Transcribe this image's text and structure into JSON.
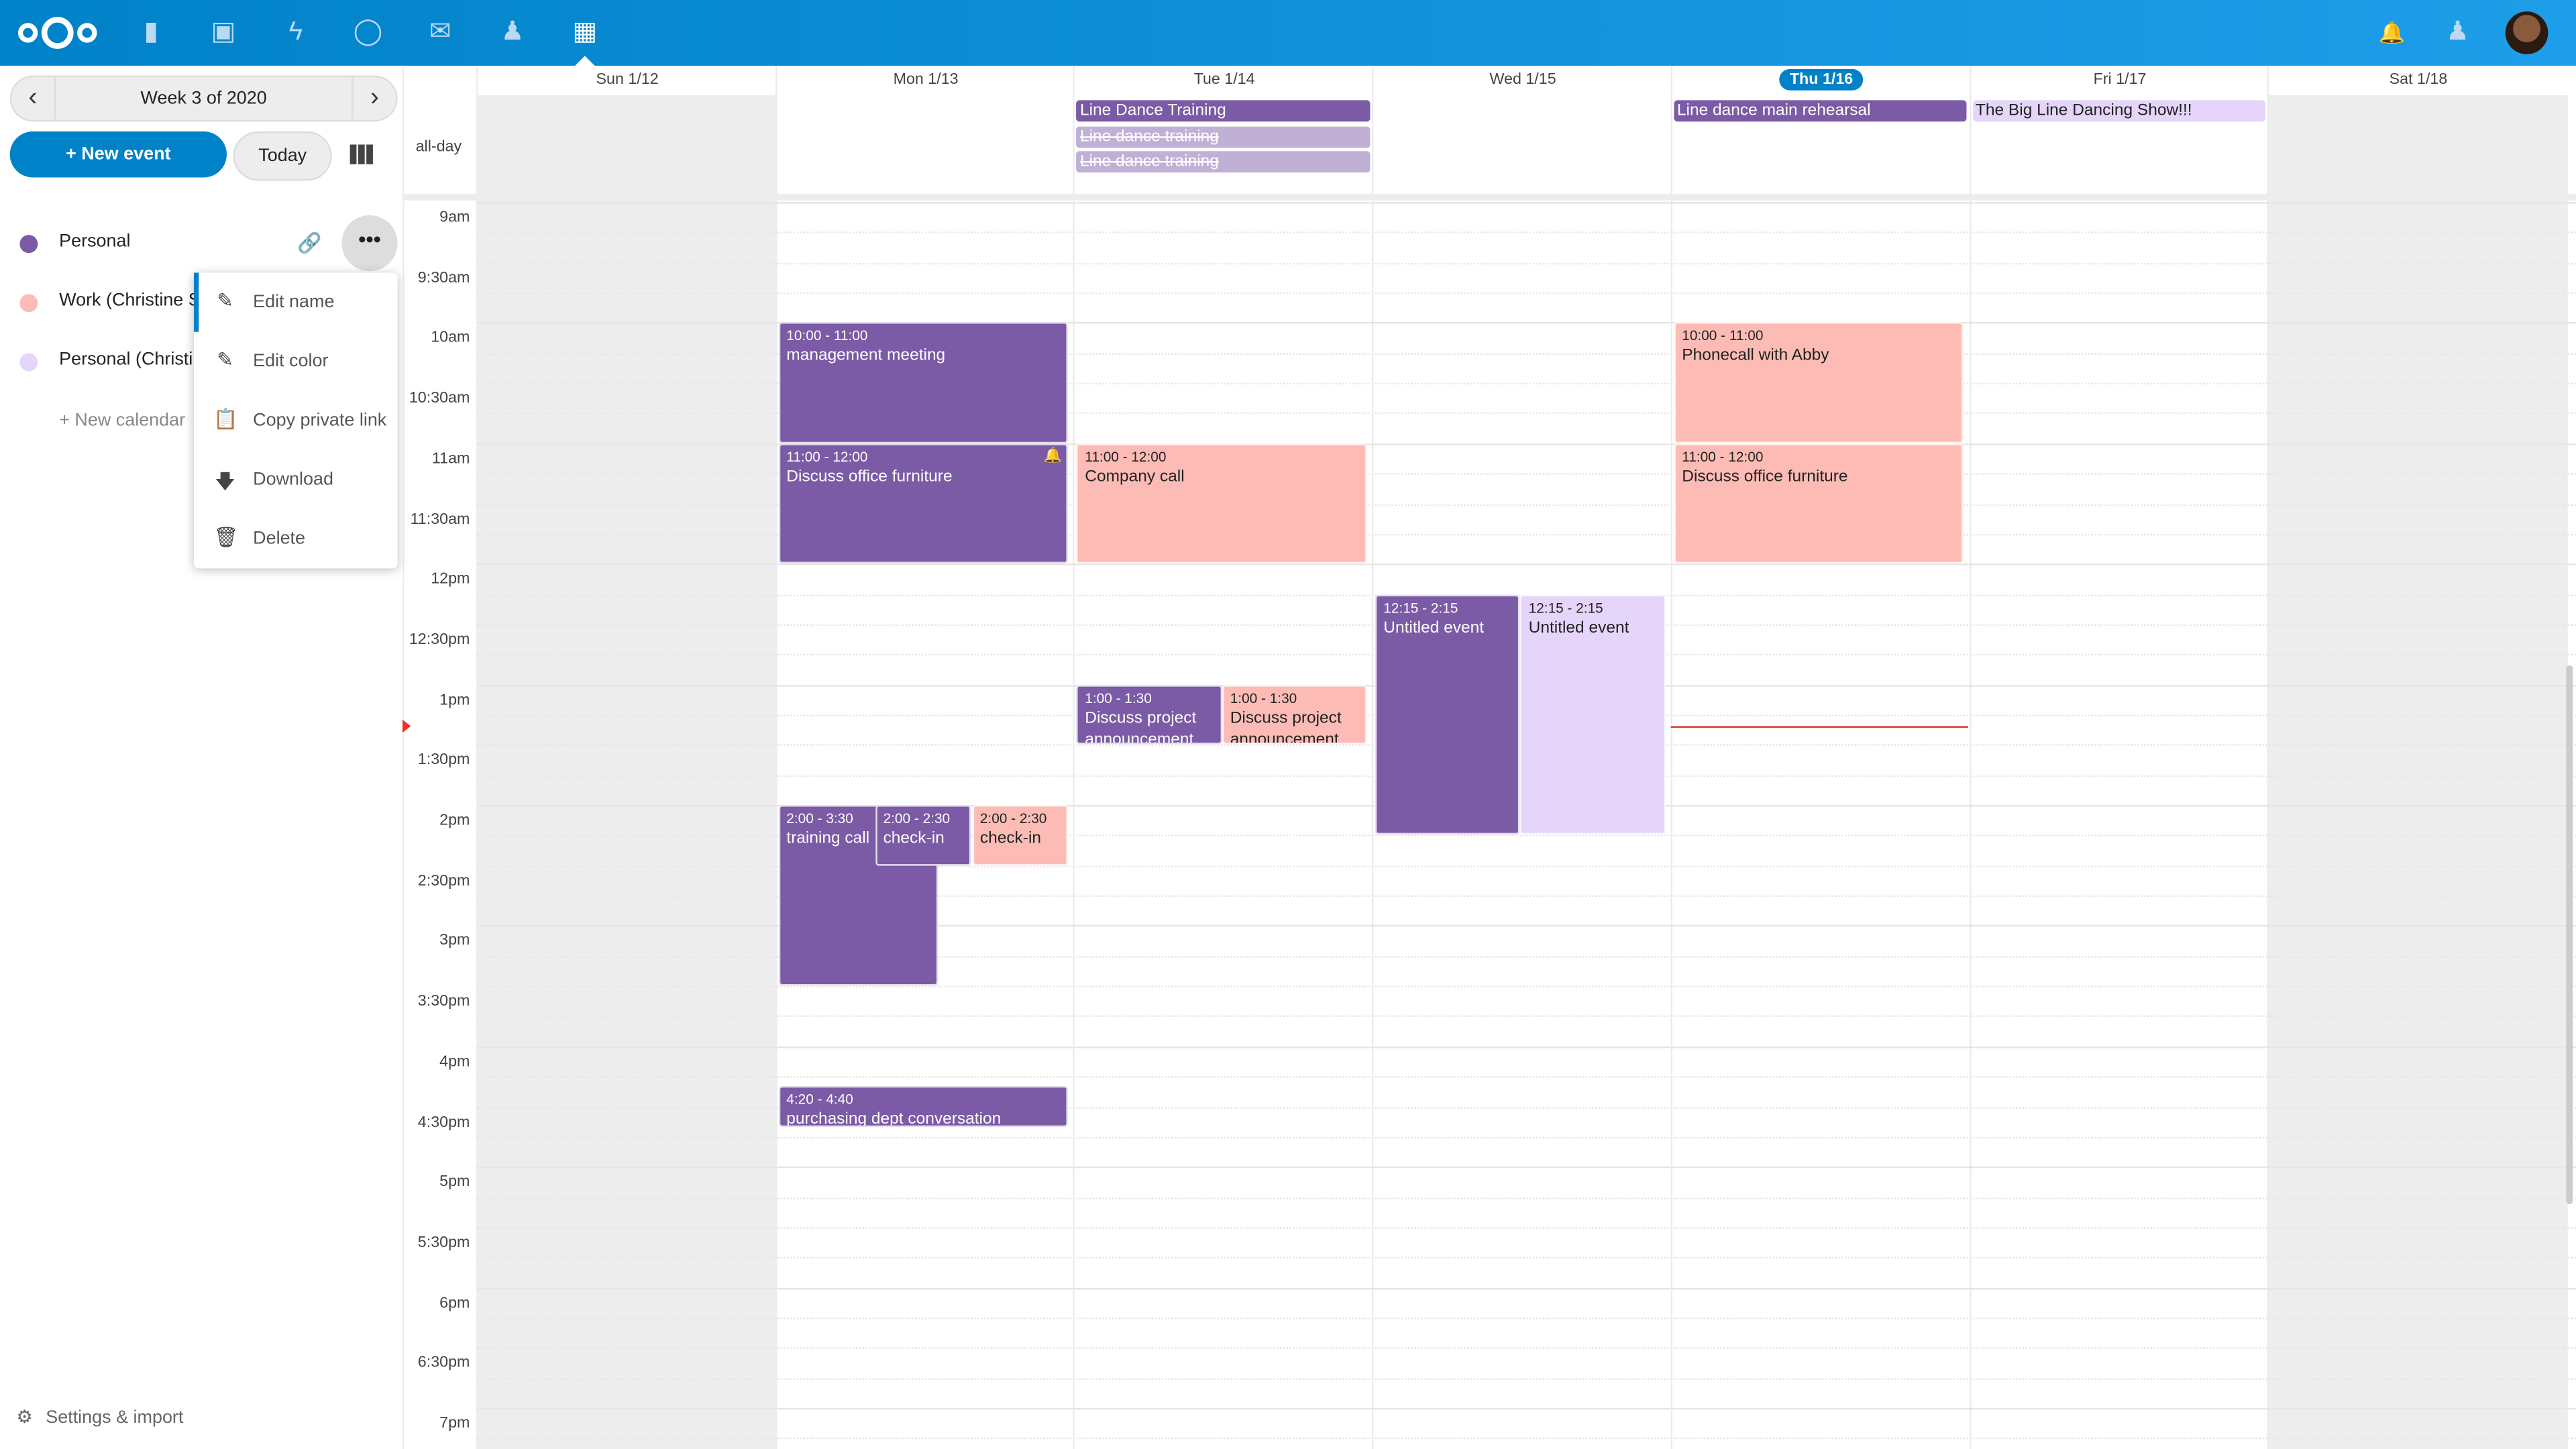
{
  "topbar": {
    "apps": [
      {
        "name": "files",
        "icon": "folder-icon"
      },
      {
        "name": "photos",
        "icon": "image-icon"
      },
      {
        "name": "activity",
        "icon": "lightning-icon"
      },
      {
        "name": "talk",
        "icon": "chat-icon"
      },
      {
        "name": "mail",
        "icon": "mail-icon"
      },
      {
        "name": "contacts",
        "icon": "contacts-icon"
      },
      {
        "name": "calendar",
        "icon": "calendar-icon",
        "active": true
      }
    ],
    "brand_color": "#0082c9"
  },
  "sidebar": {
    "week_label": "Week 3 of 2020",
    "new_event": "+ New event",
    "today": "Today",
    "calendars": [
      {
        "name": "Personal",
        "color": "#7b5aa6"
      },
      {
        "name": "Work (Christine S",
        "color": "#fcbcb5"
      },
      {
        "name": "Personal (Christi",
        "color": "#e5d5fb"
      }
    ],
    "new_calendar": "+ New calendar",
    "menu": [
      "Edit name",
      "Edit color",
      "Copy private link",
      "Download",
      "Delete"
    ],
    "settings": "Settings & import"
  },
  "calendar": {
    "days": [
      "Sun 1/12",
      "Mon 1/13",
      "Tue 1/14",
      "Wed 1/15",
      "Thu 1/16",
      "Fri 1/17",
      "Sat 1/18"
    ],
    "today_index": 4,
    "allday_label": "all-day",
    "times": [
      "9am",
      "9:30am",
      "10am",
      "10:30am",
      "11am",
      "11:30am",
      "12pm",
      "12:30pm",
      "1pm",
      "1:30pm",
      "2pm",
      "2:30pm",
      "3pm",
      "3:30pm",
      "4pm",
      "4:30pm",
      "5pm",
      "5:30pm",
      "6pm",
      "6:30pm",
      "7pm"
    ],
    "allday_events": [
      {
        "day": 2,
        "title": "Line Dance Training",
        "style": "purple"
      },
      {
        "day": 2,
        "title": "Line dance training",
        "style": "cancelled"
      },
      {
        "day": 2,
        "title": "Line dance training",
        "style": "cancelled"
      },
      {
        "day": 4,
        "title": "Line dance main rehearsal",
        "style": "purple"
      },
      {
        "day": 5,
        "title": "The Big Line Dancing Show!!!",
        "style": "lavender"
      }
    ],
    "events": [
      {
        "day": 1,
        "start": 10,
        "end": 11,
        "time": "10:00 - 11:00",
        "title": "management meeting",
        "style": "purple",
        "col": 0,
        "cols": 1
      },
      {
        "day": 1,
        "start": 11,
        "end": 12,
        "time": "11:00 - 12:00",
        "title": "Discuss office furniture",
        "style": "purple",
        "col": 0,
        "cols": 1,
        "alarm": true
      },
      {
        "day": 1,
        "start": 14,
        "end": 15.5,
        "time": "2:00 - 3:30",
        "title": "training call",
        "style": "purple",
        "col": 0,
        "cols": 1,
        "w": 0.55
      },
      {
        "day": 1,
        "start": 14,
        "end": 14.5,
        "time": "2:00 - 2:30",
        "title": "check-in",
        "style": "purple",
        "col": 1,
        "cols": 3
      },
      {
        "day": 1,
        "start": 14,
        "end": 14.5,
        "time": "2:00 - 2:30",
        "title": "check-in",
        "style": "pink",
        "col": 2,
        "cols": 3
      },
      {
        "day": 1,
        "start": 16.333,
        "end": 16.667,
        "time": "4:20 - 4:40",
        "title": "purchasing dept conversation",
        "style": "purple",
        "col": 0,
        "cols": 1
      },
      {
        "day": 2,
        "start": 11,
        "end": 12,
        "time": "11:00 - 12:00",
        "title": "Company call",
        "style": "pink",
        "col": 0,
        "cols": 1
      },
      {
        "day": 2,
        "start": 13,
        "end": 13.5,
        "time": "1:00 - 1:30",
        "title": "Discuss project announcement",
        "style": "purple",
        "col": 0,
        "cols": 2
      },
      {
        "day": 2,
        "start": 13,
        "end": 13.5,
        "time": "1:00 - 1:30",
        "title": "Discuss project announcement",
        "style": "pink",
        "col": 1,
        "cols": 2
      },
      {
        "day": 3,
        "start": 12.25,
        "end": 14.25,
        "time": "12:15 - 2:15",
        "title": "Untitled event",
        "style": "purple",
        "col": 0,
        "cols": 2
      },
      {
        "day": 3,
        "start": 12.25,
        "end": 14.25,
        "time": "12:15 - 2:15",
        "title": "Untitled event",
        "style": "lavender",
        "col": 1,
        "cols": 2
      },
      {
        "day": 4,
        "start": 10,
        "end": 11,
        "time": "10:00 - 11:00",
        "title": "Phonecall with Abby",
        "style": "pink",
        "col": 0,
        "cols": 1
      },
      {
        "day": 4,
        "start": 11,
        "end": 12,
        "time": "11:00 - 12:00",
        "title": "Discuss office furniture",
        "style": "pink",
        "col": 0,
        "cols": 1
      }
    ],
    "now_hour": 13.35,
    "colors": {
      "purple": "#7b5aa6",
      "pink": "#fcbcb5",
      "lavender": "#e5d5fb",
      "cancelled": "#c0b0d6",
      "weekend": "#ededed",
      "now": "#e9322d"
    }
  }
}
